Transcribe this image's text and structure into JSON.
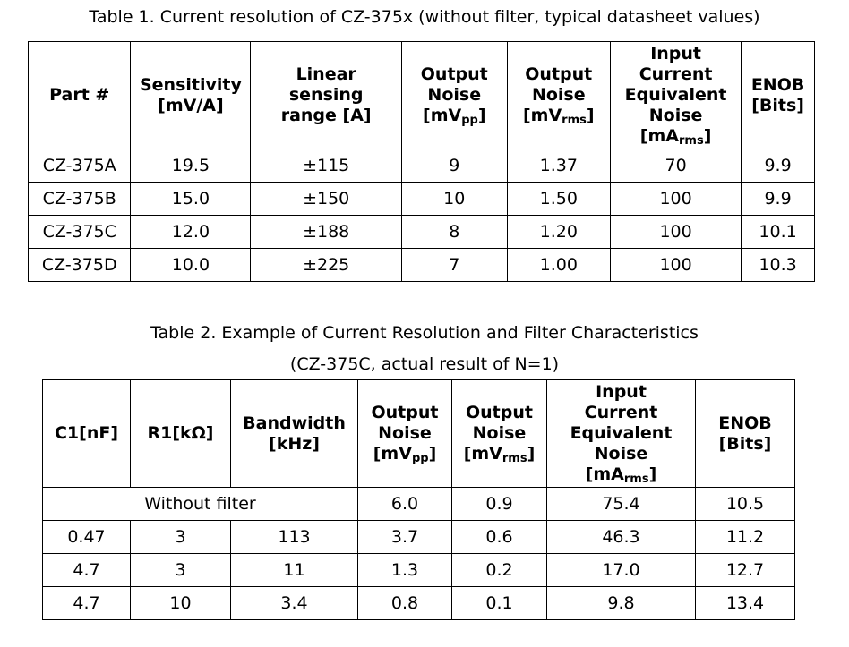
{
  "table1": {
    "caption": "Table 1. Current resolution of CZ-375x (without filter, typical datasheet values)",
    "headers": {
      "part": "Part #",
      "sensitivity": [
        "Sensitivity",
        "[mV/A]"
      ],
      "range": [
        "Linear",
        "sensing",
        "range [A]"
      ],
      "noise_pp": {
        "l1": "Output",
        "l2": "Noise",
        "pre": "[mV",
        "sub": "pp",
        "post": "]"
      },
      "noise_rms": {
        "l1": "Output",
        "l2": "Noise",
        "pre": "[mV",
        "sub": "rms",
        "post": "]"
      },
      "current_noise": {
        "l1": "Input",
        "l2": "Current",
        "l3": "Equivalent",
        "l4": "Noise",
        "pre": "[mA",
        "sub": "rms",
        "post": "]"
      },
      "enob": [
        "ENOB",
        "[Bits]"
      ]
    },
    "rows": [
      [
        "CZ-375A",
        "19.5",
        "±115",
        "9",
        "1.37",
        "70",
        "9.9"
      ],
      [
        "CZ-375B",
        "15.0",
        "±150",
        "10",
        "1.50",
        "100",
        "9.9"
      ],
      [
        "CZ-375C",
        "12.0",
        "±188",
        "8",
        "1.20",
        "100",
        "10.1"
      ],
      [
        "CZ-375D",
        "10.0",
        "±225",
        "7",
        "1.00",
        "100",
        "10.3"
      ]
    ]
  },
  "table2": {
    "caption_line1": "Table 2. Example of Current Resolution and Filter Characteristics",
    "caption_line2": "(CZ-375C, actual result of N=1)",
    "headers": {
      "c1": "C1[nF]",
      "r1": "R1[kΩ]",
      "bandwidth": [
        "Bandwidth",
        "[kHz]"
      ],
      "noise_pp": {
        "l1": "Output",
        "l2": "Noise",
        "pre": "[mV",
        "sub": "pp",
        "post": "]"
      },
      "noise_rms": {
        "l1": "Output",
        "l2": "Noise",
        "pre": "[mV",
        "sub": "rms",
        "post": "]"
      },
      "current_noise": {
        "l1": "Input",
        "l2": "Current",
        "l3": "Equivalent",
        "l4": "Noise",
        "pre": "[mA",
        "sub": "rms",
        "post": "]"
      },
      "enob": [
        "ENOB",
        "[Bits]"
      ]
    },
    "without_filter": {
      "label": "Without filter",
      "values": [
        "6.0",
        "0.9",
        "75.4",
        "10.5"
      ]
    },
    "rows": [
      [
        "0.47",
        "3",
        "113",
        "3.7",
        "0.6",
        "46.3",
        "11.2"
      ],
      [
        "4.7",
        "3",
        "11",
        "1.3",
        "0.2",
        "17.0",
        "12.7"
      ],
      [
        "4.7",
        "10",
        "3.4",
        "0.8",
        "0.1",
        "9.8",
        "13.4"
      ]
    ]
  }
}
